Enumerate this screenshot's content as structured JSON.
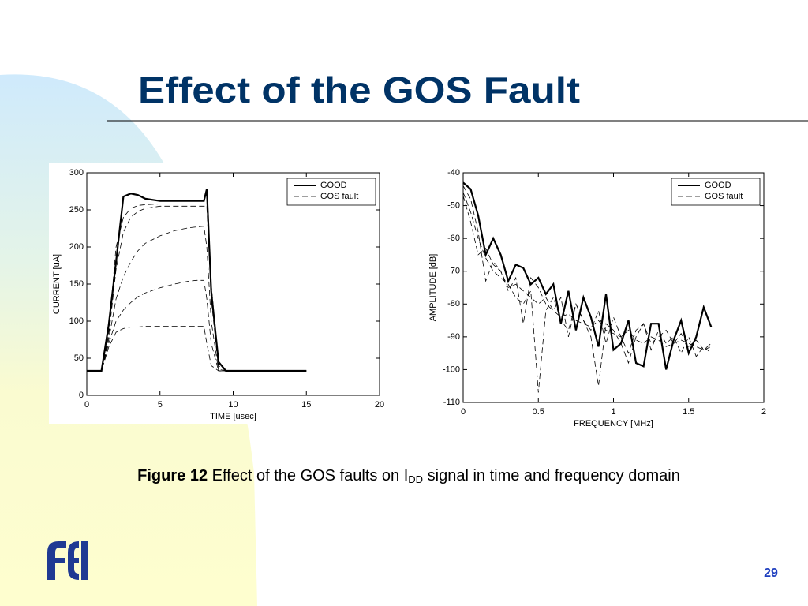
{
  "slide": {
    "title": "Effect of the GOS Fault",
    "caption_bold": "Figure 12",
    "caption_text": "Effect of the GOS faults on I",
    "caption_sub": "DD",
    "caption_rest": "signal in time and frequency domain",
    "page_number": "29"
  },
  "chart_data": [
    {
      "type": "line",
      "xlabel": "TIME [usec]",
      "ylabel": "CURRENT [uA]",
      "xlim": [
        0,
        20
      ],
      "xticks": [
        0,
        5,
        10,
        15,
        20
      ],
      "ylim": [
        0,
        300
      ],
      "yticks": [
        0,
        50,
        100,
        150,
        200,
        250,
        300
      ],
      "legend": "upper right",
      "x": [
        0,
        1,
        1.5,
        2,
        2.5,
        3,
        3.5,
        4,
        5,
        6,
        7,
        7.5,
        8,
        8.2,
        8.5,
        9,
        9.5,
        10,
        15
      ],
      "series": [
        {
          "name": "GOOD",
          "color": "#000000",
          "line_style": "solid",
          "values": [
            33,
            33,
            95,
            180,
            268,
            272,
            270,
            265,
            262,
            262,
            262,
            262,
            262,
            278,
            140,
            45,
            33,
            33,
            33
          ]
        },
        {
          "name": "GOS fault",
          "color": "#000000",
          "line_style": "dashed",
          "values": [
            33,
            33,
            85,
            200,
            240,
            252,
            256,
            257,
            258,
            258,
            258,
            258,
            258,
            258,
            150,
            40,
            33,
            33,
            33
          ]
        },
        {
          "name": "GOS fault",
          "color": "#000000",
          "line_style": "dashed",
          "values": [
            33,
            33,
            80,
            170,
            220,
            240,
            248,
            252,
            255,
            255,
            255,
            255,
            255,
            255,
            130,
            35,
            33,
            33,
            33
          ]
        },
        {
          "name": "GOS fault",
          "color": "#000000",
          "line_style": "dashed",
          "values": [
            33,
            33,
            75,
            130,
            160,
            180,
            195,
            205,
            215,
            222,
            226,
            227,
            228,
            200,
            100,
            33,
            33,
            33,
            33
          ]
        },
        {
          "name": "GOS fault",
          "color": "#000000",
          "line_style": "dashed",
          "values": [
            33,
            33,
            70,
            100,
            115,
            125,
            133,
            138,
            145,
            150,
            154,
            155,
            155,
            130,
            70,
            33,
            33,
            33,
            33
          ]
        },
        {
          "name": "GOS fault",
          "color": "#000000",
          "line_style": "dashed",
          "values": [
            33,
            33,
            65,
            85,
            90,
            92,
            92,
            93,
            93,
            93,
            93,
            93,
            93,
            70,
            40,
            33,
            33,
            33,
            33
          ]
        }
      ]
    },
    {
      "type": "line",
      "xlabel": "FREQUENCY [MHz]",
      "ylabel": "AMPLITUDE [dB]",
      "xlim": [
        0,
        2
      ],
      "xticks": [
        0,
        0.5,
        1,
        1.5,
        2
      ],
      "ylim": [
        -110,
        -40
      ],
      "yticks": [
        -110,
        -100,
        -90,
        -80,
        -70,
        -60,
        -50,
        -40
      ],
      "legend": "upper right",
      "x": [
        0,
        0.05,
        0.1,
        0.15,
        0.2,
        0.25,
        0.3,
        0.35,
        0.4,
        0.45,
        0.5,
        0.55,
        0.6,
        0.65,
        0.7,
        0.75,
        0.8,
        0.85,
        0.9,
        0.95,
        1,
        1.05,
        1.1,
        1.15,
        1.2,
        1.25,
        1.3,
        1.35,
        1.4,
        1.45,
        1.5,
        1.55,
        1.6,
        1.65
      ],
      "series": [
        {
          "name": "GOOD",
          "color": "#000000",
          "line_style": "solid",
          "values": [
            -43,
            -45,
            -53,
            -65,
            -60,
            -65,
            -73,
            -68,
            -69,
            -74,
            -72,
            -77,
            -74,
            -86,
            -76,
            -88,
            -78,
            -84,
            -93,
            -77,
            -94,
            -92,
            -85,
            -98,
            -99,
            -86,
            -86,
            -100,
            -91,
            -85,
            -95,
            -90,
            -81,
            -87
          ]
        },
        {
          "name": "GOS fault",
          "color": "#000000",
          "line_style": "dashed",
          "values": [
            -44,
            -48,
            -58,
            -73,
            -67,
            -70,
            -76,
            -72,
            -86,
            -72,
            -75,
            -80,
            -82,
            -78,
            -90,
            -80,
            -85,
            -88,
            -82,
            -92,
            -84,
            -90,
            -95,
            -88,
            -86,
            -92,
            -90,
            -88,
            -92,
            -89,
            -93,
            -91,
            -94,
            -92
          ]
        },
        {
          "name": "GOS fault",
          "color": "#000000",
          "line_style": "dashed",
          "values": [
            -46,
            -52,
            -60,
            -66,
            -70,
            -72,
            -74,
            -78,
            -80,
            -76,
            -107,
            -82,
            -78,
            -85,
            -88,
            -80,
            -85,
            -90,
            -105,
            -86,
            -88,
            -92,
            -98,
            -90,
            -86,
            -94,
            -88,
            -92,
            -90,
            -95,
            -90,
            -96,
            -93,
            -95
          ]
        },
        {
          "name": "GOS fault",
          "color": "#000000",
          "line_style": "dashed",
          "values": [
            -47,
            -55,
            -65,
            -63,
            -68,
            -70,
            -75,
            -74,
            -76,
            -78,
            -80,
            -78,
            -82,
            -84,
            -83,
            -85,
            -86,
            -87,
            -85,
            -88,
            -89,
            -90,
            -88,
            -91,
            -92,
            -90,
            -91,
            -93,
            -92,
            -91,
            -92,
            -93,
            -94,
            -93
          ]
        }
      ]
    }
  ]
}
